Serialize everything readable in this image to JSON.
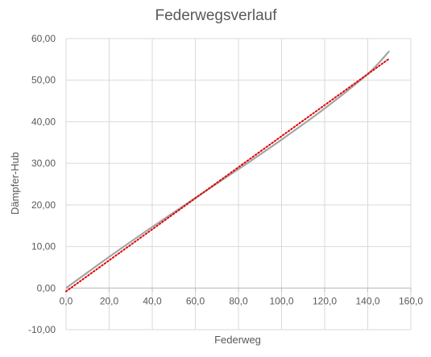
{
  "chart_data": {
    "type": "line",
    "title": "Federwegsverlauf",
    "xlabel": "Federweg",
    "ylabel": "Dämpfer-Hub",
    "xlim": [
      0,
      160
    ],
    "ylim": [
      -10,
      60
    ],
    "x_ticks": [
      "0,0",
      "20,0",
      "40,0",
      "60,0",
      "80,0",
      "100,0",
      "120,0",
      "140,0",
      "160,0"
    ],
    "y_ticks": [
      "-10,00",
      "0,00",
      "10,00",
      "20,00",
      "30,00",
      "40,00",
      "50,00",
      "60,00"
    ],
    "x_tick_values": [
      0,
      20,
      40,
      60,
      80,
      100,
      120,
      140,
      160
    ],
    "y_tick_values": [
      -10,
      0,
      10,
      20,
      30,
      40,
      50,
      60
    ],
    "grid": true,
    "legend": "none",
    "series": [
      {
        "style": "solid",
        "color": "#a5a5a5",
        "x": [
          0,
          20,
          40,
          60,
          80,
          100,
          120,
          140,
          150
        ],
        "y": [
          0.0,
          7.5,
          14.7,
          21.7,
          28.6,
          35.7,
          43.2,
          51.5,
          57.0
        ]
      },
      {
        "style": "dotted",
        "color": "#e00000",
        "x": [
          0,
          150
        ],
        "y": [
          -0.8,
          55.2
        ]
      }
    ]
  }
}
